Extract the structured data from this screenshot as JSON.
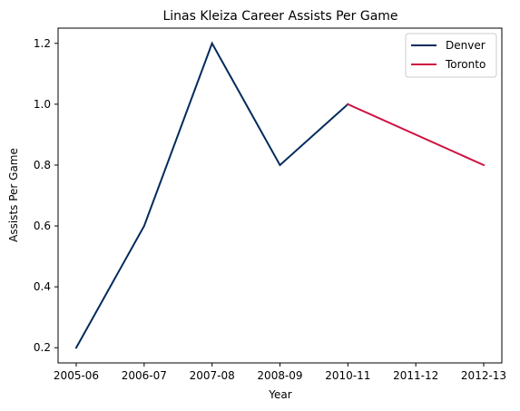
{
  "chart_data": {
    "type": "line",
    "title": "Linas Kleiza Career Assists Per Game",
    "xlabel": "Year",
    "ylabel": "Assists Per Game",
    "categories": [
      "2005-06",
      "2006-07",
      "2007-08",
      "2008-09",
      "2010-11",
      "2011-12",
      "2012-13"
    ],
    "ylim": [
      0.15,
      1.25
    ],
    "yticks": [
      "0.2",
      "0.4",
      "0.6",
      "0.8",
      "1.0",
      "1.2"
    ],
    "legend_position": "top-right",
    "series": [
      {
        "name": "Denver",
        "color": "#002B5C",
        "values": [
          0.2,
          0.6,
          1.2,
          0.8,
          1.0,
          null,
          null
        ]
      },
      {
        "name": "Toronto",
        "color": "#CE1141",
        "values": [
          null,
          null,
          null,
          null,
          1.0,
          null,
          0.8
        ]
      }
    ]
  }
}
